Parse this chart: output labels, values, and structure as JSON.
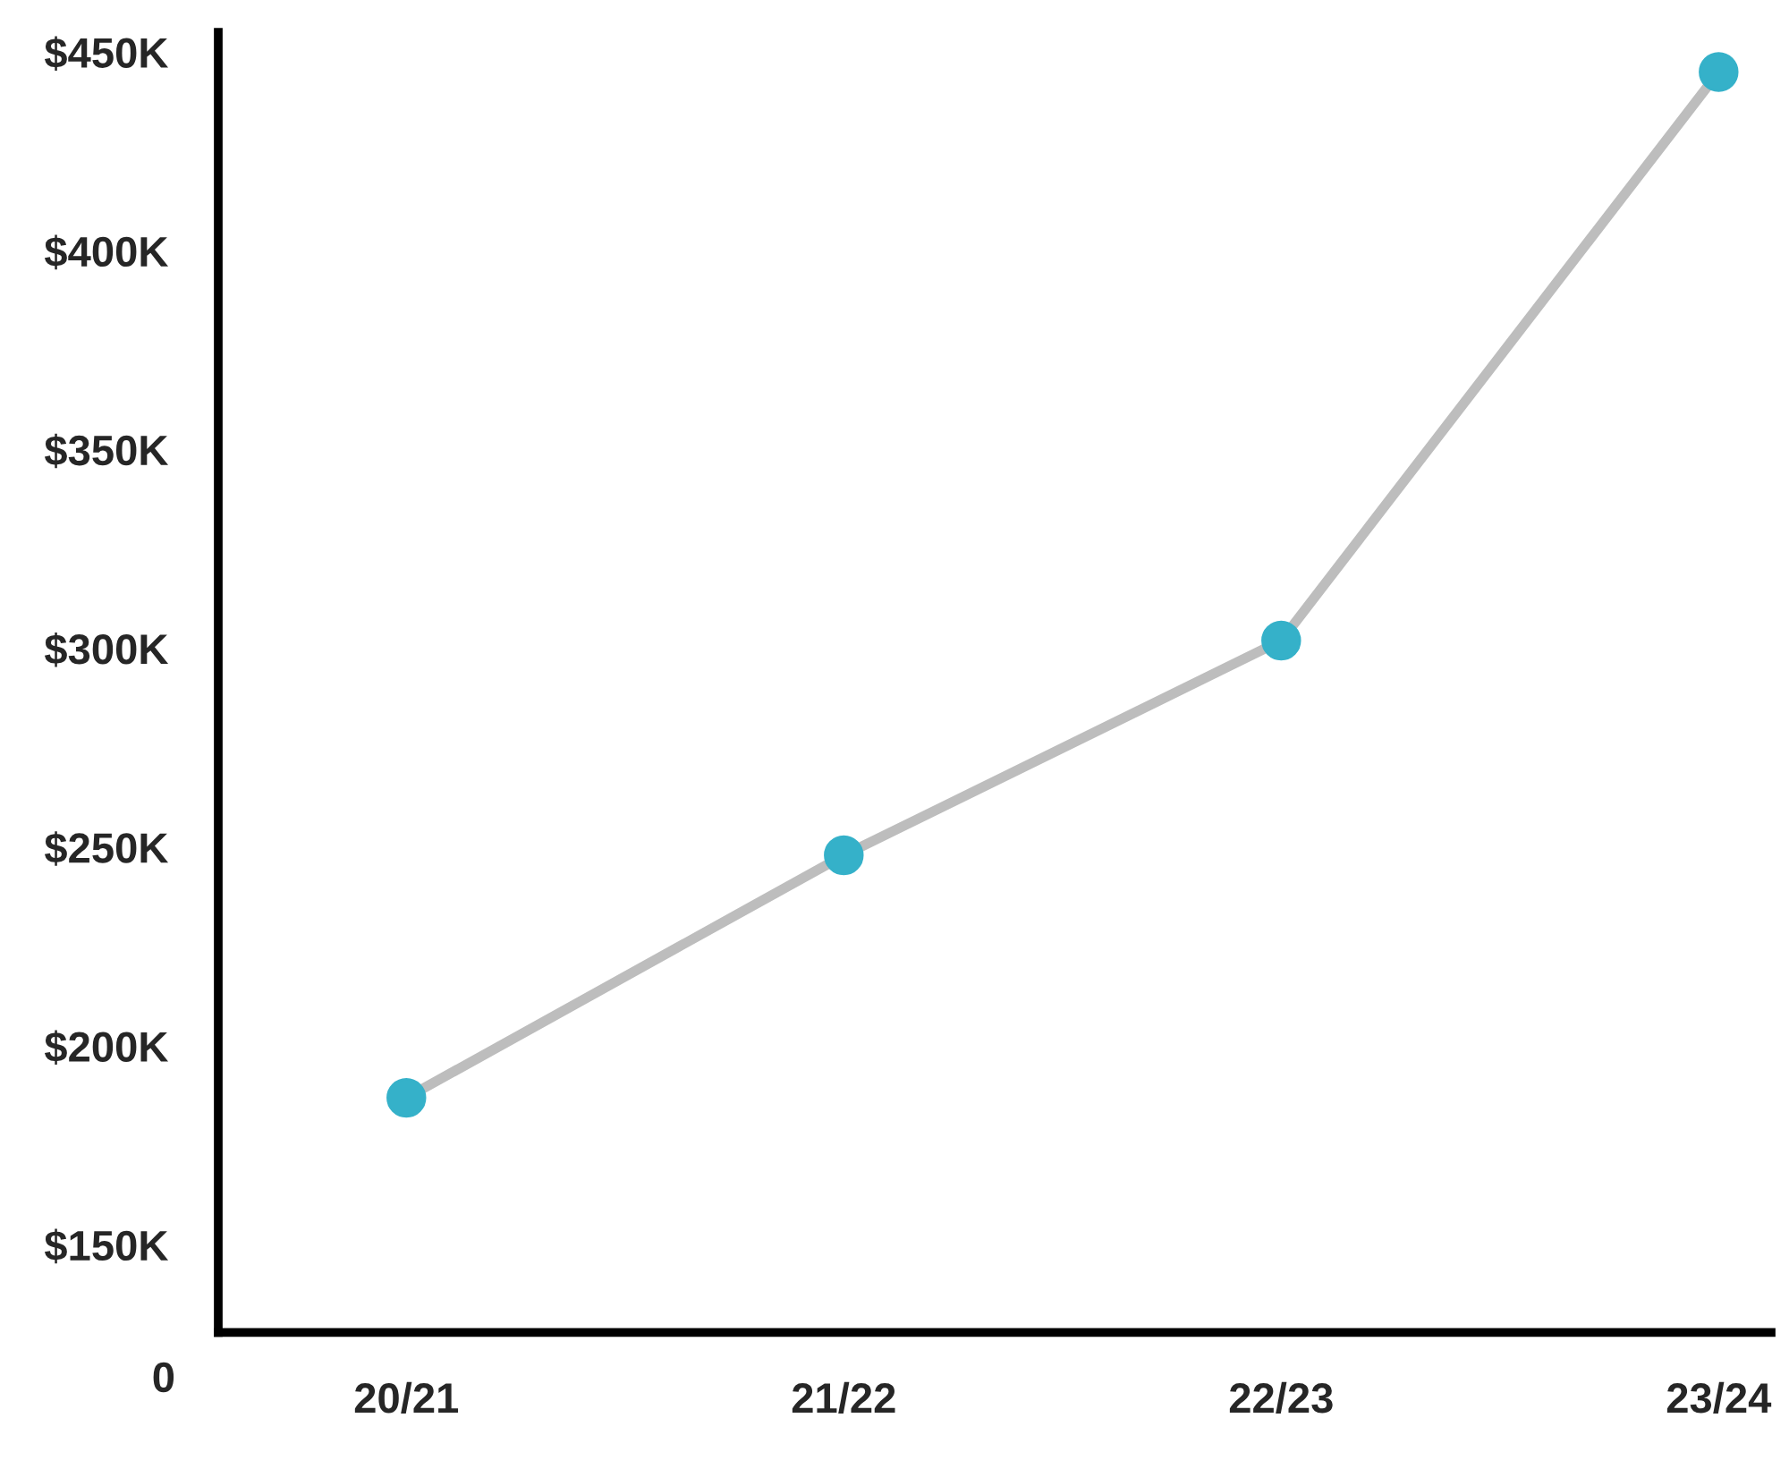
{
  "chart_data": {
    "type": "line",
    "categories": [
      "20/21",
      "21/22",
      "22/23",
      "23/24"
    ],
    "series": [
      {
        "color": "#bdbdbd",
        "colors": [
          "#35b1c9",
          "#35b1c9",
          "#35b1c9",
          "#35b1c9"
        ],
        "values": [
          187000,
          248000,
          302000,
          445000
        ]
      }
    ],
    "ylim": [
      128000,
      455000
    ],
    "yticks": [
      {
        "value": 150000,
        "label": "$150K"
      },
      {
        "value": 200000,
        "label": "$200K"
      },
      {
        "value": 250000,
        "label": "$250K"
      },
      {
        "value": 300000,
        "label": "$300K"
      },
      {
        "value": 350000,
        "label": "$350K"
      },
      {
        "value": 400000,
        "label": "$400K"
      },
      {
        "value": 450000,
        "label": "$450K"
      }
    ],
    "annotations": [
      "0"
    ],
    "marker": "circle",
    "line_style": "solid",
    "grid": false,
    "legend": false
  }
}
